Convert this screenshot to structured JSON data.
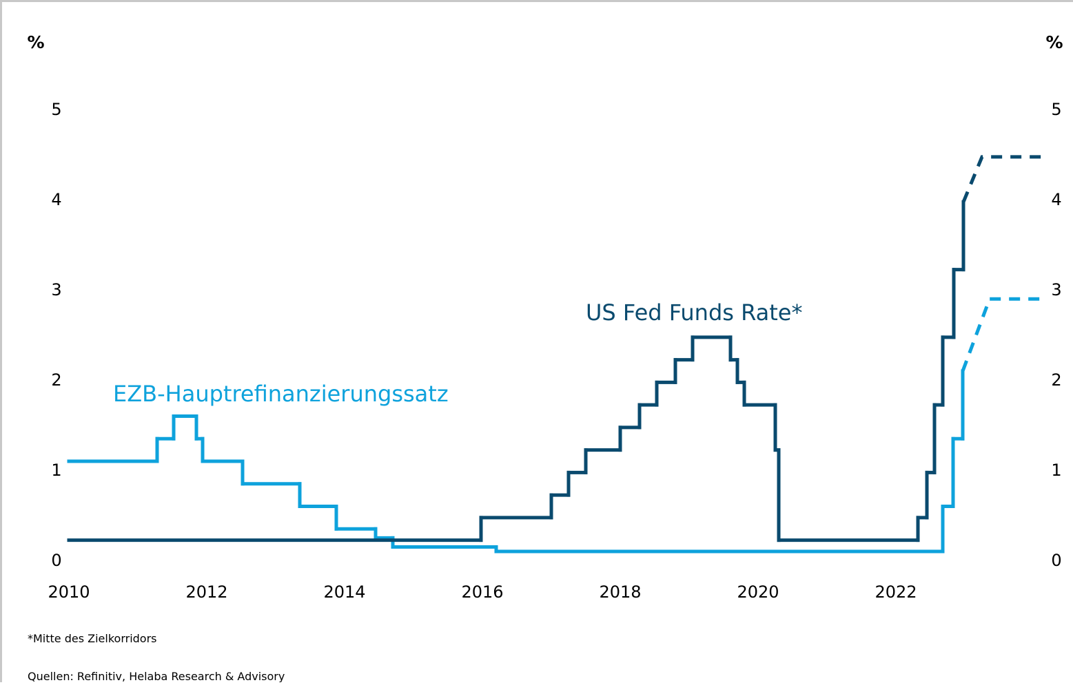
{
  "chart_data": {
    "type": "step-line",
    "y_label": "%",
    "y2_label": "%",
    "xlim": [
      2010,
      2024.2
    ],
    "xticks": [
      2010,
      2012,
      2014,
      2016,
      2018,
      2020,
      2022
    ],
    "ylim": [
      0,
      5.5
    ],
    "yticks": [
      0,
      1,
      2,
      3,
      4,
      5
    ],
    "y2lim": [
      0,
      5.5
    ],
    "y2ticks": [
      0,
      1,
      2,
      3,
      4,
      5
    ],
    "x_end": 2024.15,
    "series": [
      {
        "name": "EZB-Hauptrefinanzierungssatz",
        "color": "#0ea2dc",
        "x": [
          2010,
          2011.28,
          2011.52,
          2011.85,
          2011.94,
          2012.52,
          2013.35,
          2013.88,
          2014.45,
          2014.7,
          2016.2,
          2022.68,
          2022.83,
          2022.97
        ],
        "values": [
          1.0,
          1.25,
          1.5,
          1.25,
          1.0,
          0.75,
          0.5,
          0.25,
          0.15,
          0.05,
          0.0,
          0.5,
          1.25,
          2.0
        ],
        "forecast": {
          "x": [
            2022.97,
            2023.36,
            2024.15
          ],
          "values": [
            2.0,
            2.8,
            2.8
          ]
        }
      },
      {
        "name": "US Fed Funds Rate*",
        "color": "#0a4a6e",
        "x": [
          2010,
          2015.98,
          2017.0,
          2017.25,
          2017.5,
          2018.0,
          2018.28,
          2018.53,
          2018.8,
          2019.05,
          2019.6,
          2019.7,
          2019.8,
          2020.25,
          2020.3,
          2022.32,
          2022.45,
          2022.56,
          2022.68,
          2022.84,
          2022.98
        ],
        "values": [
          0.125,
          0.375,
          0.625,
          0.875,
          1.125,
          1.375,
          1.625,
          1.875,
          2.125,
          2.375,
          2.125,
          1.875,
          1.625,
          1.125,
          0.125,
          0.375,
          0.875,
          1.625,
          2.375,
          3.125,
          3.875
        ],
        "forecast": {
          "x": [
            2022.98,
            2023.25,
            2024.15
          ],
          "values": [
            3.875,
            4.375,
            4.375
          ]
        }
      }
    ],
    "footnote": "*Mitte des Zielkorridors",
    "source": "Quellen: Refinitiv, Helaba Research & Advisory"
  }
}
